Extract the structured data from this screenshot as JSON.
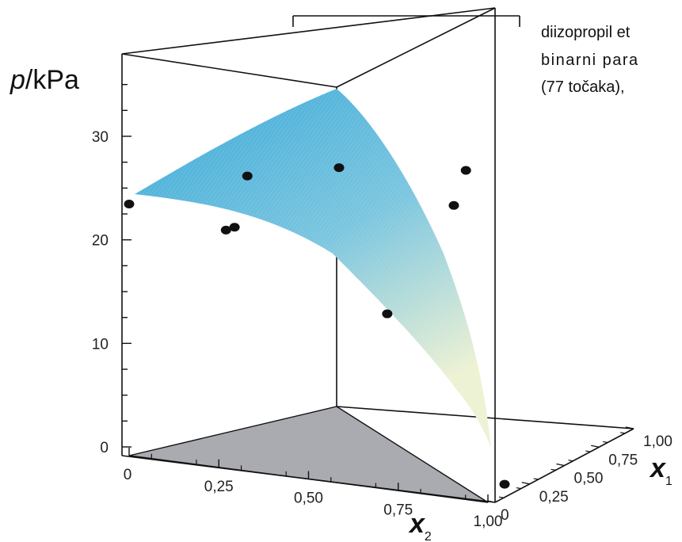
{
  "annotation": {
    "line1": "diizopropil et",
    "line2": "binarni para",
    "line3": "(77 točaka),"
  },
  "chart_data": {
    "type": "surface3d",
    "title": "",
    "zlabel": {
      "symbol": "p",
      "unit": "/kPa"
    },
    "xlabel": {
      "symbol": "x",
      "sub": "2"
    },
    "ylabel": {
      "symbol": "x",
      "sub": "1"
    },
    "z_ticks": [
      "0",
      "10",
      "20",
      "30"
    ],
    "x2_ticks": [
      "0",
      "0,25",
      "0,50",
      "0,75",
      "1,00"
    ],
    "x1_ticks": [
      "0",
      "0,25",
      "0,50",
      "0,75",
      "1,00"
    ],
    "zlim": [
      0,
      35
    ],
    "surface_color_high": "#3aa9d9",
    "surface_color_low": "#eef2d4",
    "base_color": "#a9abb0",
    "points": [
      {
        "x2": 0.0,
        "x1": 0.0,
        "p": 24.3
      },
      {
        "x2": 0.26,
        "x1": 0.18,
        "p": 26.9
      },
      {
        "x2": 0.5,
        "x1": 0.22,
        "p": 28.5
      },
      {
        "x2": 0.9,
        "x1": 0.1,
        "p": 30.9
      },
      {
        "x2": 0.82,
        "x1": 0.22,
        "p": 26.3
      },
      {
        "x2": 0.27,
        "x1": 0.0,
        "p": 23.0
      },
      {
        "x2": 0.29,
        "x1": 0.01,
        "p": 23.3
      },
      {
        "x2": 0.7,
        "x1": 0.05,
        "p": 16.5
      },
      {
        "x2": 1.0,
        "x1": 0.12,
        "p": 0.9
      }
    ]
  }
}
